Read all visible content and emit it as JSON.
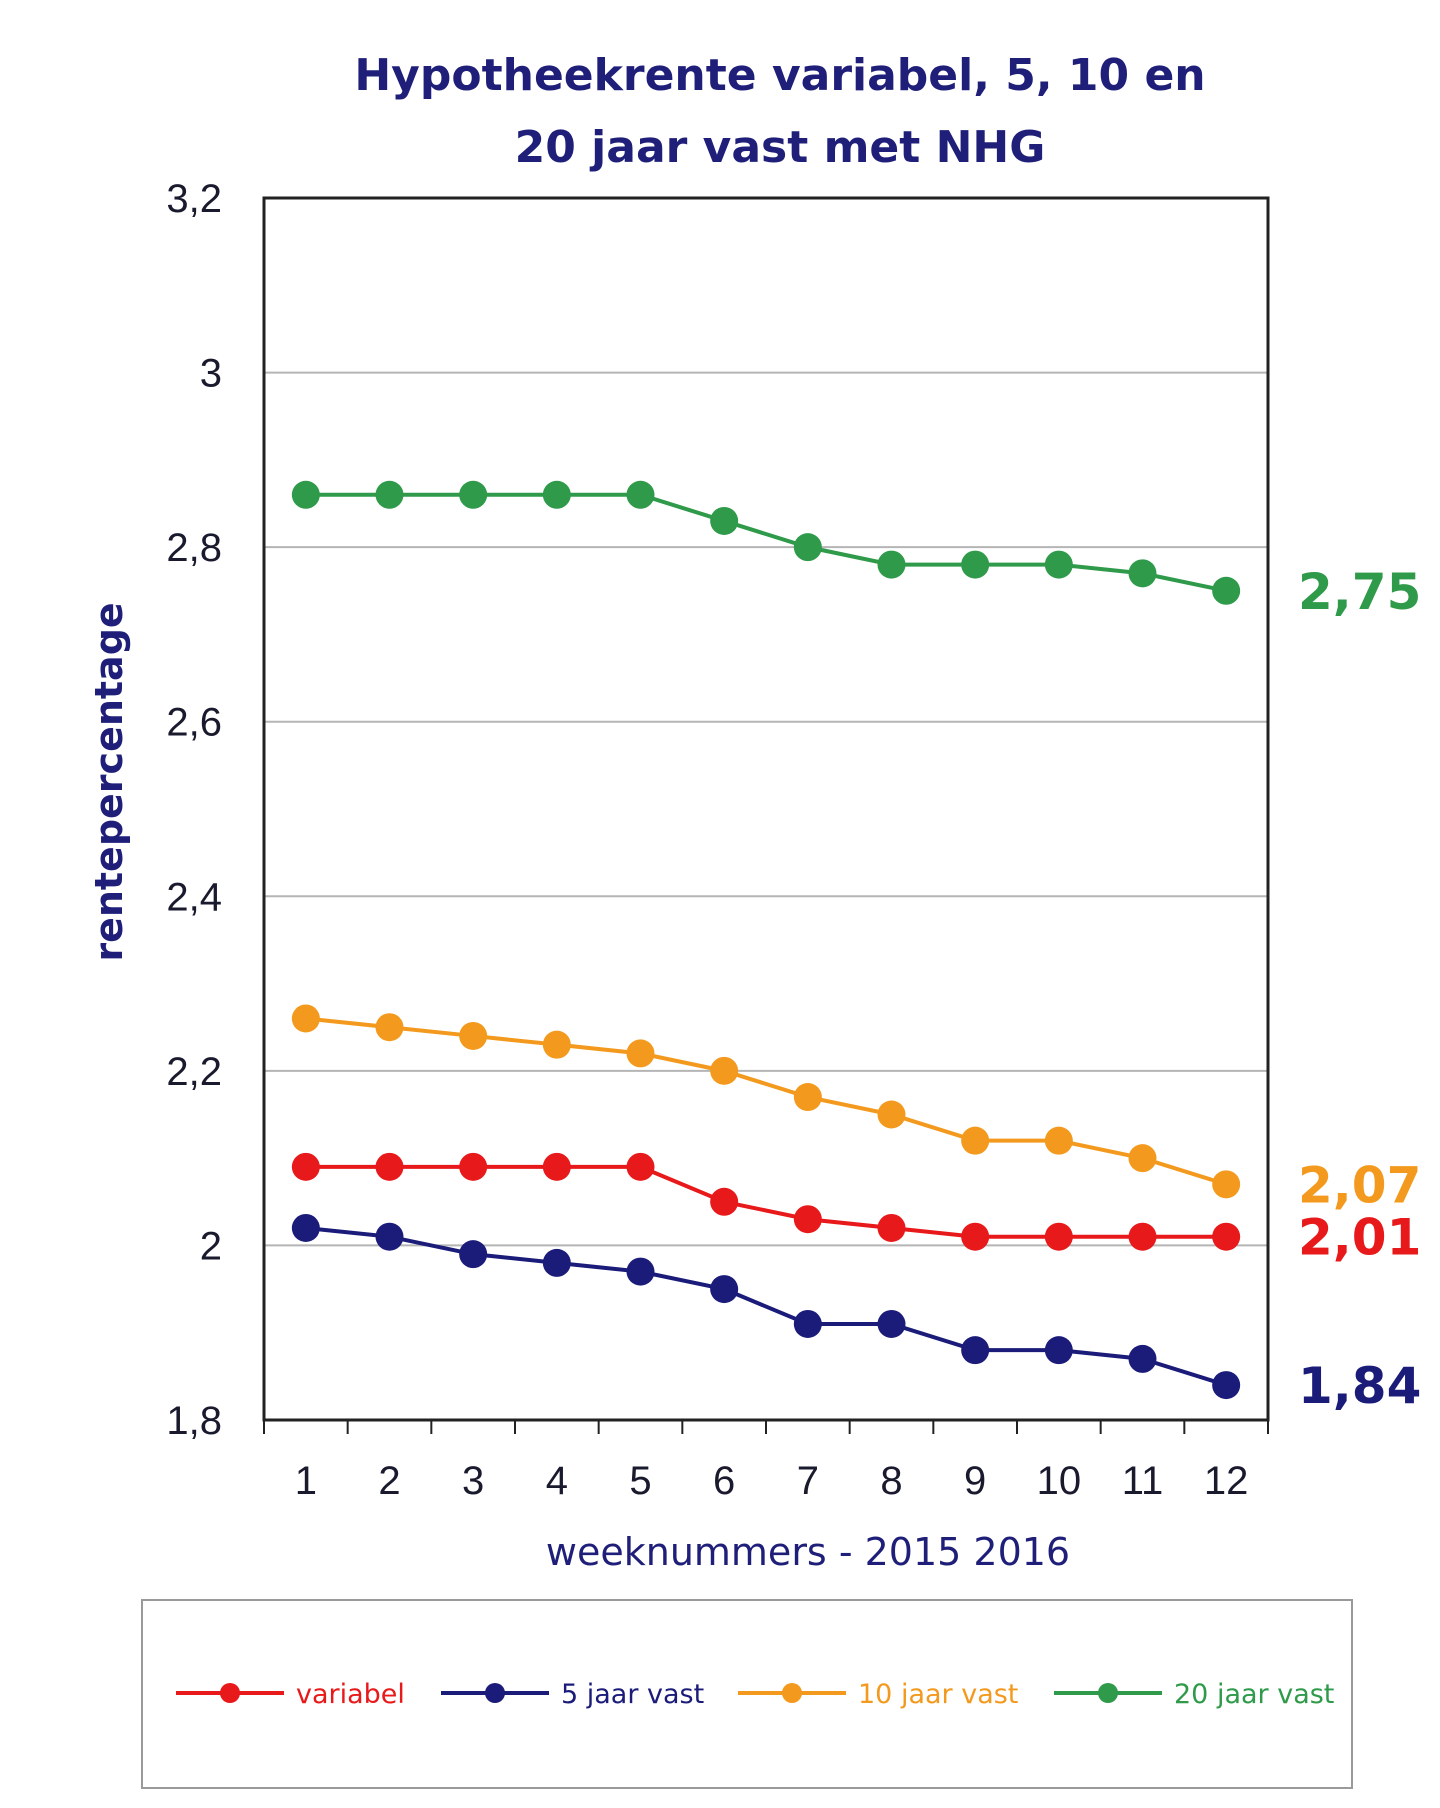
{
  "chart_data": {
    "type": "line",
    "title_lines": [
      "Hypotheekrente variabel, 5, 10 en",
      "20 jaar vast met NHG"
    ],
    "xlabel": "weeknummers - 2015 2016",
    "ylabel": "rentepercentage",
    "x": [
      1,
      2,
      3,
      4,
      5,
      6,
      7,
      8,
      9,
      10,
      11,
      12
    ],
    "ylim": [
      1.8,
      3.2
    ],
    "yticks": [
      {
        "value": 1.8,
        "label": "1,8"
      },
      {
        "value": 2.0,
        "label": "2"
      },
      {
        "value": 2.2,
        "label": "2,2"
      },
      {
        "value": 2.4,
        "label": "2,4"
      },
      {
        "value": 2.6,
        "label": "2,6"
      },
      {
        "value": 2.8,
        "label": "2,8"
      },
      {
        "value": 3.0,
        "label": "3"
      },
      {
        "value": 3.2,
        "label": "3,2"
      }
    ],
    "grid": true,
    "legend_position": "bottom",
    "series": [
      {
        "name": "variabel",
        "color": "#e8191a",
        "end_label": "2,01",
        "values": [
          2.09,
          2.09,
          2.09,
          2.09,
          2.09,
          2.05,
          2.03,
          2.02,
          2.01,
          2.01,
          2.01,
          2.01
        ]
      },
      {
        "name": "5 jaar vast",
        "color": "#1b1b7a",
        "end_label": "1,84",
        "values": [
          2.02,
          2.01,
          1.99,
          1.98,
          1.97,
          1.95,
          1.91,
          1.91,
          1.88,
          1.88,
          1.87,
          1.84
        ]
      },
      {
        "name": "10 jaar vast",
        "color": "#f39a1e",
        "end_label": "2,07",
        "values": [
          2.26,
          2.25,
          2.24,
          2.23,
          2.22,
          2.2,
          2.17,
          2.15,
          2.12,
          2.12,
          2.1,
          2.07
        ]
      },
      {
        "name": "20 jaar vast",
        "color": "#2e9a4a",
        "end_label": "2,75",
        "values": [
          2.86,
          2.86,
          2.86,
          2.86,
          2.86,
          2.83,
          2.8,
          2.78,
          2.78,
          2.78,
          2.77,
          2.75
        ]
      }
    ]
  }
}
